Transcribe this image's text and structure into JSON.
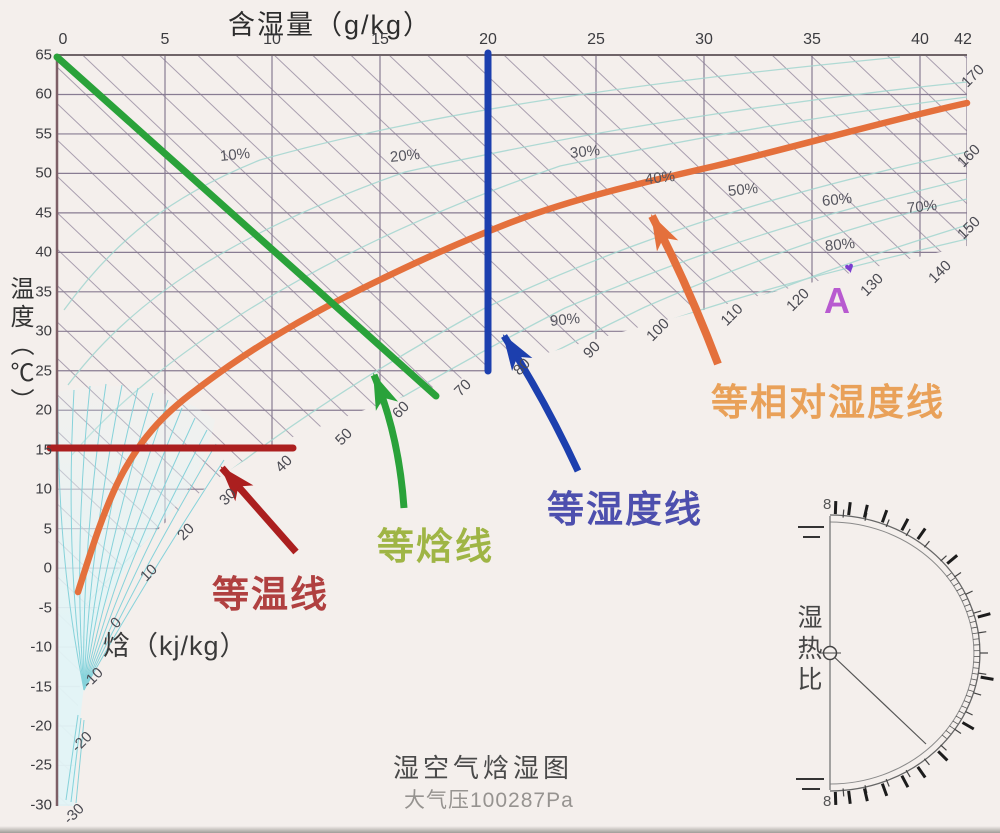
{
  "title_top": "含湿量（g/kg）",
  "axis_left_label": "温度（℃）",
  "enthalpy_axis_label": "焓（kj/kg）",
  "footer": {
    "title": "湿空气焓湿图",
    "pressure": "大气压100287Pa"
  },
  "shr": {
    "label": "湿热比",
    "end_symbol_top": "8",
    "end_symbol_bottom": "8"
  },
  "point_a": {
    "label": "A",
    "marker_glyph": "♥",
    "color": "#b85ad0",
    "marker_color": "#7b3fd0"
  },
  "annotations": [
    {
      "id": "isotherm",
      "label": "等温线",
      "color": "#b04040"
    },
    {
      "id": "isenthalp",
      "label": "等焓线",
      "color": "#9fb545"
    },
    {
      "id": "iso_moisture",
      "label": "等湿度线",
      "color": "#4d4fae"
    },
    {
      "id": "iso_rh",
      "label": "等相对湿度线",
      "color": "#e9a159"
    }
  ],
  "chart_data": {
    "type": "psychrometric-diagram",
    "x_axis": {
      "label": "含湿量（g/kg）",
      "unit": "g/kg",
      "ticks": [
        0,
        5,
        10,
        15,
        20,
        25,
        30,
        35,
        40,
        42
      ],
      "range": [
        0,
        42
      ]
    },
    "y_axis": {
      "label": "温度（℃）",
      "unit": "℃",
      "ticks": [
        65,
        60,
        55,
        50,
        45,
        40,
        35,
        30,
        25,
        20,
        15,
        10,
        5,
        0,
        -5,
        -10,
        -15,
        -20,
        -25,
        -30
      ],
      "range": [
        -30,
        65
      ]
    },
    "enthalpy_axis": {
      "label": "焓（kj/kg）",
      "unit": "kj/kg",
      "labels": [
        -30,
        -20,
        -10,
        0,
        10,
        20,
        30,
        40,
        50,
        60,
        70,
        80,
        90,
        100,
        110,
        120,
        130,
        140,
        150,
        160,
        170
      ]
    },
    "rh_curve_labels": [
      "10%",
      "20%",
      "30%",
      "40%",
      "50%",
      "60%",
      "70%",
      "80%",
      "90%"
    ],
    "highlight_lines": [
      {
        "name": "等温线",
        "type": "isotherm",
        "value_c": 15,
        "color": "#ab1f1f"
      },
      {
        "name": "等焓线",
        "type": "isenthalp",
        "color": "#2aa23a"
      },
      {
        "name": "等湿度线",
        "type": "iso-moisture",
        "value_g_per_kg": 20,
        "color": "#1c3fae"
      },
      {
        "name": "等相对湿度线",
        "type": "iso-relative-humidity",
        "color": "#e4703c"
      }
    ],
    "marked_point": {
      "label": "A"
    },
    "footer_title": "湿空气焓湿图",
    "pressure_label": "大气压100287Pa",
    "shr_protractor_label": "湿热比",
    "grid": "on"
  }
}
